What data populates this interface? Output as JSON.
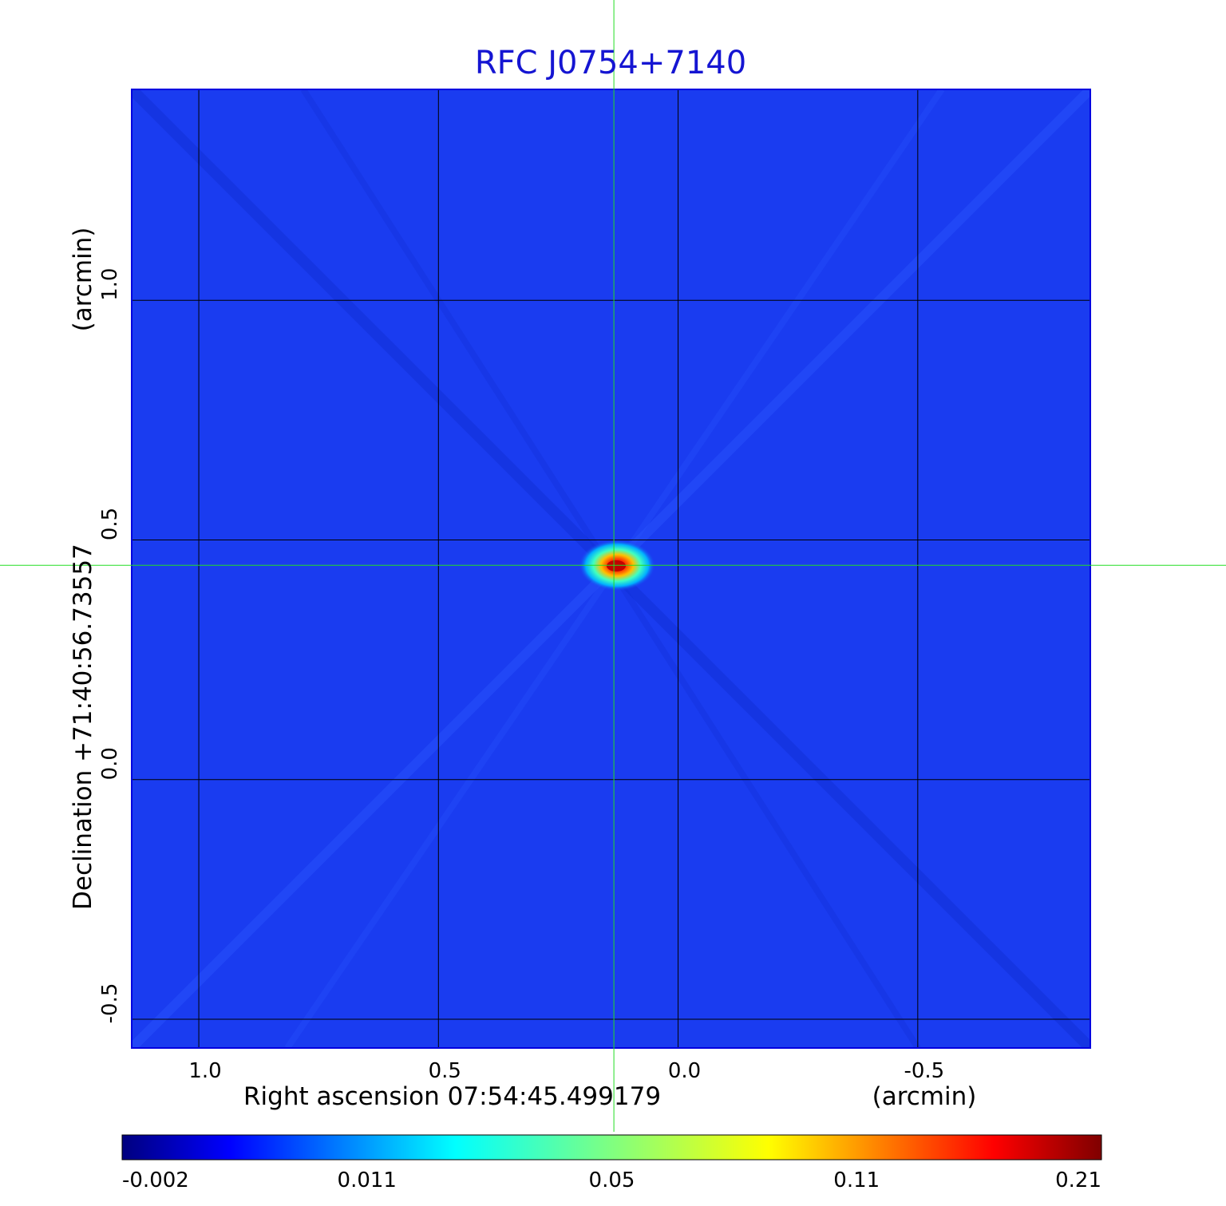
{
  "chart_data": {
    "type": "heatmap",
    "title": "RFC J0754+7140",
    "xlabel": "Right ascension  07:54:45.499179",
    "xunit": "(arcmin)",
    "ylabel": "Declination  +71:40:56.73557",
    "yunit": "(arcmin)",
    "x_ticks": [
      {
        "value": 1.0,
        "label": "1.0"
      },
      {
        "value": 0.5,
        "label": "0.5"
      },
      {
        "value": 0.0,
        "label": "0.0"
      },
      {
        "value": -0.5,
        "label": "-0.5"
      }
    ],
    "y_ticks": [
      {
        "value": 1.0,
        "label": "1.0"
      },
      {
        "value": 0.5,
        "label": "0.5"
      },
      {
        "value": 0.0,
        "label": "0.0"
      },
      {
        "value": -0.5,
        "label": "-0.5"
      }
    ],
    "xlim": [
      1.14,
      -0.86
    ],
    "ylim": [
      -0.56,
      1.44
    ],
    "grid": true,
    "crosshair": {
      "x": 0.134,
      "y": 0.447
    },
    "source_peak": {
      "x": 0.134,
      "y": 0.447,
      "value": 0.21
    },
    "colorbar": {
      "colormap": "jet",
      "ticks": [
        "-0.002",
        "0.011",
        "0.05",
        "0.11",
        "0.21"
      ],
      "range": [
        -0.002,
        0.21
      ]
    },
    "background_color": "#1a3cf0",
    "crosshair_color": "#22dd22"
  }
}
